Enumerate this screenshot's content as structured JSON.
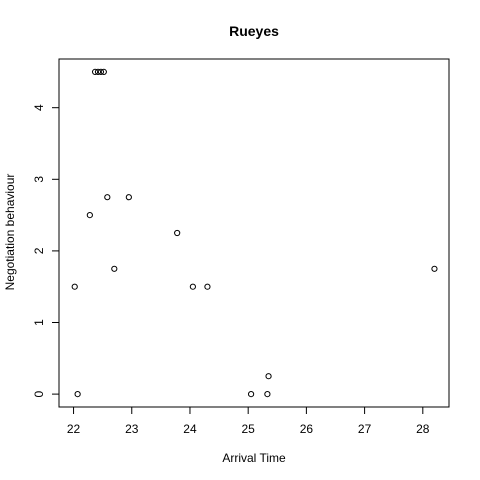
{
  "chart_data": {
    "type": "scatter",
    "title": "Rueyes",
    "xlabel": "Arrival Time",
    "ylabel": "Negotiation behaviour",
    "xlim": [
      21.75,
      28.45
    ],
    "ylim": [
      -0.18,
      4.68
    ],
    "x_ticks": [
      22,
      23,
      24,
      25,
      26,
      27,
      28
    ],
    "y_ticks": [
      0,
      1,
      2,
      3,
      4
    ],
    "grid": false,
    "legend": "none",
    "points": [
      {
        "x": 22.02,
        "y": 1.5
      },
      {
        "x": 22.07,
        "y": 0
      },
      {
        "x": 22.28,
        "y": 2.5
      },
      {
        "x": 22.37,
        "y": 4.5
      },
      {
        "x": 22.42,
        "y": 4.5
      },
      {
        "x": 22.47,
        "y": 4.5
      },
      {
        "x": 22.52,
        "y": 4.5
      },
      {
        "x": 22.58,
        "y": 2.75
      },
      {
        "x": 22.7,
        "y": 1.75
      },
      {
        "x": 22.95,
        "y": 2.75
      },
      {
        "x": 23.78,
        "y": 2.25
      },
      {
        "x": 24.05,
        "y": 1.5
      },
      {
        "x": 24.3,
        "y": 1.5
      },
      {
        "x": 25.05,
        "y": 0
      },
      {
        "x": 25.33,
        "y": 0
      },
      {
        "x": 25.35,
        "y": 0.25
      },
      {
        "x": 28.2,
        "y": 1.75
      }
    ]
  }
}
